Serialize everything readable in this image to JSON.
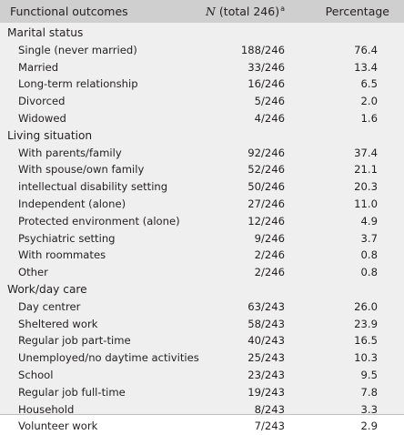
{
  "header": {
    "col1": "Functional outcomes",
    "col2_italic": "N",
    "col2_rest": " (total 246)",
    "col2_sup": "a",
    "col3": "Percentage"
  },
  "sections": [
    {
      "title": "Marital status",
      "rows": [
        {
          "label": "Single (never married)",
          "n": "188/246",
          "pct": "76.4"
        },
        {
          "label": "Married",
          "n": "33/246",
          "pct": "13.4"
        },
        {
          "label": "Long-term relationship",
          "n": "16/246",
          "pct": "6.5"
        },
        {
          "label": "Divorced",
          "n": "5/246",
          "pct": "2.0"
        },
        {
          "label": "Widowed",
          "n": "4/246",
          "pct": "1.6"
        }
      ]
    },
    {
      "title": "Living situation",
      "rows": [
        {
          "label": "With parents/family",
          "n": "92/246",
          "pct": "37.4"
        },
        {
          "label": "With spouse/own family",
          "n": "52/246",
          "pct": "21.1"
        },
        {
          "label": "intellectual disability setting",
          "n": "50/246",
          "pct": "20.3"
        },
        {
          "label": "Independent (alone)",
          "n": "27/246",
          "pct": "11.0"
        },
        {
          "label": "Protected environment (alone)",
          "n": "12/246",
          "pct": "4.9"
        },
        {
          "label": "Psychiatric setting",
          "n": "9/246",
          "pct": "3.7"
        },
        {
          "label": "With roommates",
          "n": "2/246",
          "pct": "0.8"
        },
        {
          "label": "Other",
          "n": "2/246",
          "pct": "0.8"
        }
      ]
    },
    {
      "title": "Work/day care",
      "rows": [
        {
          "label": "Day centrer",
          "n": "63/243",
          "pct": "26.0"
        },
        {
          "label": "Sheltered work",
          "n": "58/243",
          "pct": "23.9"
        },
        {
          "label": "Regular job part-time",
          "n": "40/243",
          "pct": "16.5"
        },
        {
          "label": "Unemployed/no daytime activities",
          "n": "25/243",
          "pct": "10.3"
        },
        {
          "label": "School",
          "n": "23/243",
          "pct": "9.5"
        },
        {
          "label": "Regular job full-time",
          "n": "19/243",
          "pct": "7.8"
        },
        {
          "label": "Household",
          "n": "8/243",
          "pct": "3.3"
        },
        {
          "label": "Volunteer work",
          "n": "7/243",
          "pct": "2.9"
        }
      ]
    }
  ]
}
